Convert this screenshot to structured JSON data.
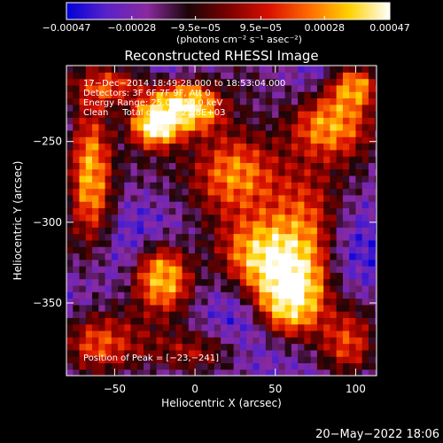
{
  "chart_data": {
    "type": "heatmap",
    "title": "Reconstructed RHESSI Image",
    "xlabel": "Heliocentric X (arcsec)",
    "ylabel": "Heliocentric Y (arcsec)",
    "xlim": [
      -80,
      113
    ],
    "ylim": [
      -395,
      -203
    ],
    "xticks": [
      -50,
      0,
      50,
      100
    ],
    "yticks": [
      -250,
      -300,
      -350
    ],
    "xtick_labels": [
      "−50",
      "0",
      "50",
      "100"
    ],
    "ytick_labels": [
      "−250",
      "−300",
      "−350"
    ],
    "colorbar": {
      "colors": [
        "#0000d8",
        "#5a22c8",
        "#8a2aa0",
        "#1a0508",
        "#7a0000",
        "#d81000",
        "#ff6a00",
        "#ffd200",
        "#ffffff"
      ],
      "ticks": [
        -0.00047,
        -0.00028,
        -9.5e-05,
        9.5e-05,
        0.00028,
        0.00047
      ],
      "tick_labels": [
        "−0.00047",
        "−0.00028",
        "−9.5e−05",
        "9.5e−05",
        "0.00028",
        "0.00047"
      ],
      "unit_label": "(photons cm⁻² s⁻¹ asec⁻²)"
    },
    "peak_position": [
      -23,
      -241
    ],
    "sources": [
      {
        "x": 60,
        "y": -345,
        "peak": 0.00047,
        "sx": 14,
        "sy": 16
      },
      {
        "x": 45,
        "y": -320,
        "peak": 0.00036,
        "sx": 18,
        "sy": 14
      },
      {
        "x": -5,
        "y": -228,
        "peak": 0.00042,
        "sx": 14,
        "sy": 10
      },
      {
        "x": -25,
        "y": -240,
        "peak": 0.00045,
        "sx": 10,
        "sy": 9
      },
      {
        "x": 25,
        "y": -270,
        "peak": 0.00026,
        "sx": 22,
        "sy": 22
      },
      {
        "x": -65,
        "y": -270,
        "peak": 0.0003,
        "sx": 10,
        "sy": 30
      },
      {
        "x": -20,
        "y": -335,
        "peak": 0.00032,
        "sx": 13,
        "sy": 15
      },
      {
        "x": 85,
        "y": -240,
        "peak": 0.00028,
        "sx": 18,
        "sy": 14
      },
      {
        "x": -60,
        "y": -375,
        "peak": 0.00022,
        "sx": 18,
        "sy": 14
      },
      {
        "x": 70,
        "y": -295,
        "peak": 0.00018,
        "sx": 16,
        "sy": 22
      },
      {
        "x": 100,
        "y": -215,
        "peak": 0.00025,
        "sx": 12,
        "sy": 10
      },
      {
        "x": -50,
        "y": -215,
        "peak": 0.0002,
        "sx": 18,
        "sy": 10
      },
      {
        "x": 0,
        "y": -380,
        "peak": 0.00015,
        "sx": 20,
        "sy": 10
      },
      {
        "x": 95,
        "y": -375,
        "peak": 0.0002,
        "sx": 12,
        "sy": 15
      }
    ],
    "minimum": -0.00047,
    "maximum": 0.00047
  },
  "annotations": {
    "time_range": "17−Dec−2014 18:49:28.000 to 18:53:04.000",
    "detectors": "Detectors: 3F 6F 7F 9F, Att 0",
    "energy": "Energy Range: 25.0 − 50.0 keV",
    "clean": "Clean     Total counts: 2.28E+03",
    "peak": "Position of Peak = [−23,−241]"
  },
  "footer": {
    "timestamp": "20−May−2022 18:06"
  }
}
